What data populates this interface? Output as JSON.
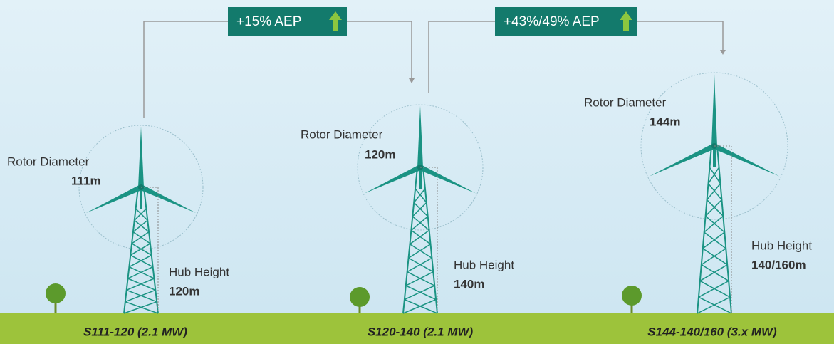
{
  "turbines": [
    {
      "rotor_label": "Rotor Diameter",
      "rotor_value": "111m",
      "hub_label": "Hub Height",
      "hub_value": "120m",
      "model": "S111-120 (2.1 MW)"
    },
    {
      "rotor_label": "Rotor Diameter",
      "rotor_value": "120m",
      "hub_label": "Hub Height",
      "hub_value": "140m",
      "model": "S120-140 (2.1 MW)"
    },
    {
      "rotor_label": "Rotor Diameter",
      "rotor_value": "144m",
      "hub_label": "Hub Height",
      "hub_value": "140/160m",
      "model": "S144-140/160 (3.x MW)"
    }
  ],
  "gains": [
    {
      "label": "+15% AEP"
    },
    {
      "label": "+43%/49% AEP"
    }
  ]
}
